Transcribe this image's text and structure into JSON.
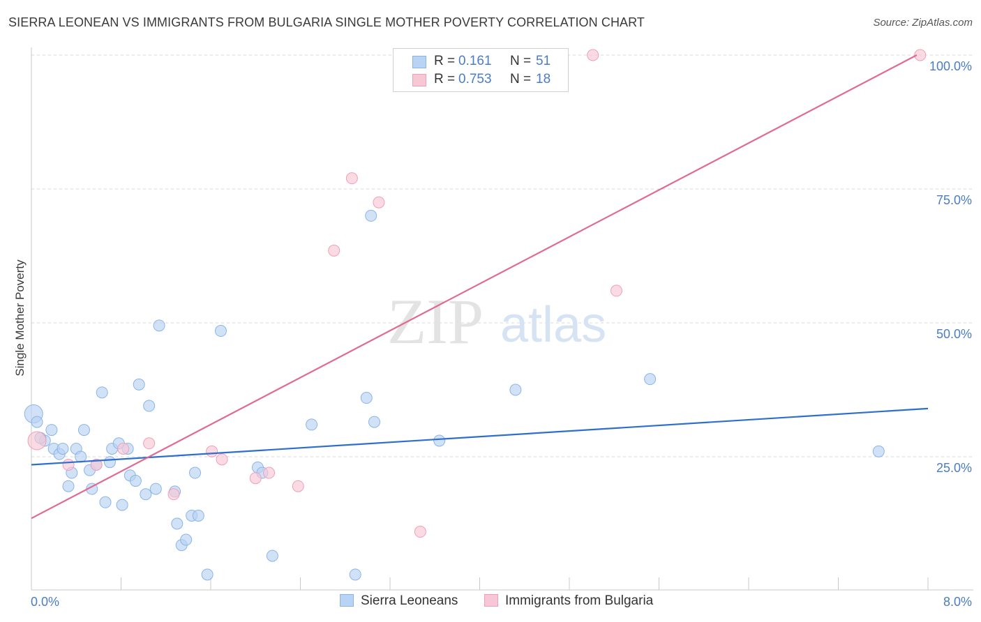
{
  "header": {
    "title": "SIERRA LEONEAN VS IMMIGRANTS FROM BULGARIA SINGLE MOTHER POVERTY CORRELATION CHART",
    "source": "Source: ZipAtlas.com"
  },
  "watermark": {
    "zip": "ZIP",
    "atlas": "atlas"
  },
  "legend": {
    "rows": [
      {
        "r_label": "R =",
        "r_value": "0.161",
        "n_label": "N =",
        "n_value": "51"
      },
      {
        "r_label": "R =",
        "r_value": "0.753",
        "n_label": "N =",
        "n_value": "18"
      }
    ]
  },
  "bottom_legend": {
    "items": [
      {
        "label": "Sierra Leoneans"
      },
      {
        "label": "Immigrants from Bulgaria"
      }
    ]
  },
  "colors": {
    "blue_fill": "#b8d3f3",
    "blue_stroke": "#8ab4e8",
    "blue_line": "#2e6fcc",
    "pink_fill": "#f7c7d6",
    "pink_stroke": "#ef9fba",
    "pink_line": "#e06a93",
    "grid": "#d8d8d8",
    "tick_text": "#4a7cc7"
  },
  "chart_data": {
    "type": "scatter",
    "title": "SIERRA LEONEAN VS IMMIGRANTS FROM BULGARIA SINGLE MOTHER POVERTY CORRELATION CHART",
    "xlabel": "",
    "ylabel": "Single Mother Poverty",
    "xlim": [
      0,
      8.0
    ],
    "ylim": [
      0,
      103
    ],
    "x_tick_labels": [
      "0.0%",
      "8.0%"
    ],
    "y_ticks": [
      25,
      50,
      75,
      100
    ],
    "y_tick_labels": [
      "25.0%",
      "50.0%",
      "75.0%",
      "100.0%"
    ],
    "grid": true,
    "legend_position": "top-center",
    "series": [
      {
        "name": "Sierra Leoneans",
        "r": 0.161,
        "n": 51,
        "trend": {
          "x": [
            0,
            8.0
          ],
          "y": [
            23.5,
            34.0
          ]
        },
        "points": [
          [
            0.02,
            33.0
          ],
          [
            0.05,
            31.5
          ],
          [
            0.12,
            28.0
          ],
          [
            0.18,
            30.0
          ],
          [
            0.2,
            26.5
          ],
          [
            0.25,
            25.5
          ],
          [
            0.28,
            26.5
          ],
          [
            0.33,
            19.5
          ],
          [
            0.36,
            22.0
          ],
          [
            0.4,
            26.5
          ],
          [
            0.44,
            25.0
          ],
          [
            0.47,
            30.0
          ],
          [
            0.52,
            22.5
          ],
          [
            0.54,
            19.0
          ],
          [
            0.58,
            23.5
          ],
          [
            0.63,
            37.0
          ],
          [
            0.66,
            16.5
          ],
          [
            0.7,
            24.0
          ],
          [
            0.72,
            26.5
          ],
          [
            0.78,
            27.5
          ],
          [
            0.81,
            16.0
          ],
          [
            0.86,
            26.5
          ],
          [
            0.88,
            21.5
          ],
          [
            0.93,
            20.5
          ],
          [
            0.96,
            38.5
          ],
          [
            1.02,
            18.0
          ],
          [
            1.05,
            34.5
          ],
          [
            1.11,
            19.0
          ],
          [
            1.14,
            49.5
          ],
          [
            1.28,
            18.5
          ],
          [
            1.3,
            12.5
          ],
          [
            1.34,
            8.5
          ],
          [
            1.38,
            9.5
          ],
          [
            1.43,
            14.0
          ],
          [
            1.46,
            22.0
          ],
          [
            1.49,
            14.0
          ],
          [
            1.57,
            3.0
          ],
          [
            1.69,
            48.5
          ],
          [
            2.02,
            23.0
          ],
          [
            2.06,
            22.0
          ],
          [
            2.15,
            6.5
          ],
          [
            2.5,
            31.0
          ],
          [
            2.89,
            3.0
          ],
          [
            2.99,
            36.0
          ],
          [
            3.03,
            70.0
          ],
          [
            3.06,
            31.5
          ],
          [
            3.64,
            28.0
          ],
          [
            4.32,
            37.5
          ],
          [
            5.52,
            39.5
          ],
          [
            7.56,
            26.0
          ],
          [
            0.08,
            28.5
          ]
        ]
      },
      {
        "name": "Immigrants from Bulgaria",
        "r": 0.753,
        "n": 18,
        "trend": {
          "x": [
            0,
            7.9
          ],
          "y": [
            13.5,
            100.0
          ]
        },
        "points": [
          [
            0.05,
            28.0
          ],
          [
            0.33,
            23.5
          ],
          [
            0.58,
            23.5
          ],
          [
            0.82,
            26.5
          ],
          [
            1.05,
            27.5
          ],
          [
            1.27,
            18.0
          ],
          [
            1.61,
            26.0
          ],
          [
            1.7,
            24.5
          ],
          [
            2.0,
            21.0
          ],
          [
            2.12,
            22.0
          ],
          [
            2.38,
            19.5
          ],
          [
            2.7,
            63.5
          ],
          [
            2.86,
            77.0
          ],
          [
            3.1,
            72.5
          ],
          [
            3.47,
            11.0
          ],
          [
            5.01,
            100.0
          ],
          [
            5.22,
            56.0
          ],
          [
            7.93,
            100.0
          ]
        ]
      }
    ]
  }
}
